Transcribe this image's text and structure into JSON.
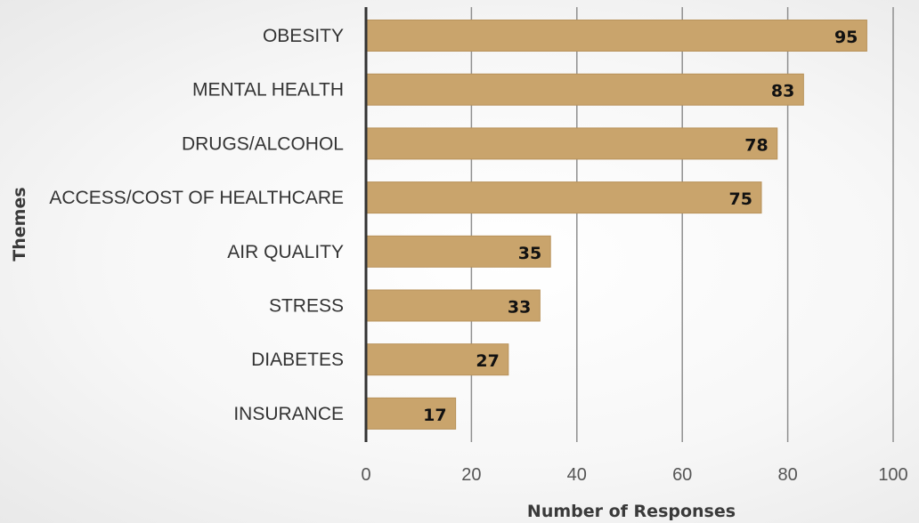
{
  "chart_data": {
    "type": "bar",
    "orientation": "horizontal",
    "title": "",
    "categories": [
      "OBESITY",
      "MENTAL HEALTH",
      "DRUGS/ALCOHOL",
      "ACCESS/COST OF HEALTHCARE",
      "AIR QUALITY",
      "STRESS",
      "DIABETES",
      "INSURANCE"
    ],
    "values": [
      95,
      83,
      78,
      75,
      35,
      33,
      27,
      17
    ],
    "data_labels": [
      "95",
      "83",
      "78",
      "75",
      "35",
      "33",
      "27",
      "17"
    ],
    "xlabel": "Number of Responses",
    "ylabel": "Themes",
    "xlim": [
      0,
      100
    ],
    "xticks": [
      0,
      20,
      40,
      60,
      80,
      100
    ],
    "xtick_labels": [
      "0",
      "20",
      "40",
      "60",
      "80",
      "100"
    ],
    "grid": "vertical",
    "legend": "none",
    "colors": {
      "bar": "#c9a46c",
      "bar_stroke": "#b8925a",
      "gridline": "#8f8f8f",
      "axis": "#333333"
    }
  }
}
